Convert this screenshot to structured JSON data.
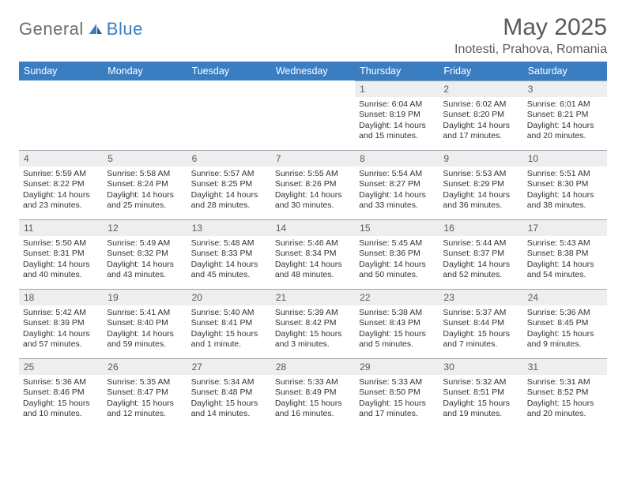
{
  "logo": {
    "general": "General",
    "blue": "Blue"
  },
  "title": "May 2025",
  "location": "Inotesti, Prahova, Romania",
  "colors": {
    "header_bg": "#3a7ec1",
    "header_text": "#ffffff",
    "daynum_bg": "#eceef0",
    "daynum_border": "#9fa4aa",
    "text": "#333333",
    "title_text": "#5a5a5a"
  },
  "weekdays": [
    "Sunday",
    "Monday",
    "Tuesday",
    "Wednesday",
    "Thursday",
    "Friday",
    "Saturday"
  ],
  "weeks": [
    [
      {
        "empty": true
      },
      {
        "empty": true
      },
      {
        "empty": true
      },
      {
        "empty": true
      },
      {
        "day": "1",
        "sunrise": "Sunrise: 6:04 AM",
        "sunset": "Sunset: 8:19 PM",
        "daylight": "Daylight: 14 hours and 15 minutes."
      },
      {
        "day": "2",
        "sunrise": "Sunrise: 6:02 AM",
        "sunset": "Sunset: 8:20 PM",
        "daylight": "Daylight: 14 hours and 17 minutes."
      },
      {
        "day": "3",
        "sunrise": "Sunrise: 6:01 AM",
        "sunset": "Sunset: 8:21 PM",
        "daylight": "Daylight: 14 hours and 20 minutes."
      }
    ],
    [
      {
        "day": "4",
        "sunrise": "Sunrise: 5:59 AM",
        "sunset": "Sunset: 8:22 PM",
        "daylight": "Daylight: 14 hours and 23 minutes."
      },
      {
        "day": "5",
        "sunrise": "Sunrise: 5:58 AM",
        "sunset": "Sunset: 8:24 PM",
        "daylight": "Daylight: 14 hours and 25 minutes."
      },
      {
        "day": "6",
        "sunrise": "Sunrise: 5:57 AM",
        "sunset": "Sunset: 8:25 PM",
        "daylight": "Daylight: 14 hours and 28 minutes."
      },
      {
        "day": "7",
        "sunrise": "Sunrise: 5:55 AM",
        "sunset": "Sunset: 8:26 PM",
        "daylight": "Daylight: 14 hours and 30 minutes."
      },
      {
        "day": "8",
        "sunrise": "Sunrise: 5:54 AM",
        "sunset": "Sunset: 8:27 PM",
        "daylight": "Daylight: 14 hours and 33 minutes."
      },
      {
        "day": "9",
        "sunrise": "Sunrise: 5:53 AM",
        "sunset": "Sunset: 8:29 PM",
        "daylight": "Daylight: 14 hours and 36 minutes."
      },
      {
        "day": "10",
        "sunrise": "Sunrise: 5:51 AM",
        "sunset": "Sunset: 8:30 PM",
        "daylight": "Daylight: 14 hours and 38 minutes."
      }
    ],
    [
      {
        "day": "11",
        "sunrise": "Sunrise: 5:50 AM",
        "sunset": "Sunset: 8:31 PM",
        "daylight": "Daylight: 14 hours and 40 minutes."
      },
      {
        "day": "12",
        "sunrise": "Sunrise: 5:49 AM",
        "sunset": "Sunset: 8:32 PM",
        "daylight": "Daylight: 14 hours and 43 minutes."
      },
      {
        "day": "13",
        "sunrise": "Sunrise: 5:48 AM",
        "sunset": "Sunset: 8:33 PM",
        "daylight": "Daylight: 14 hours and 45 minutes."
      },
      {
        "day": "14",
        "sunrise": "Sunrise: 5:46 AM",
        "sunset": "Sunset: 8:34 PM",
        "daylight": "Daylight: 14 hours and 48 minutes."
      },
      {
        "day": "15",
        "sunrise": "Sunrise: 5:45 AM",
        "sunset": "Sunset: 8:36 PM",
        "daylight": "Daylight: 14 hours and 50 minutes."
      },
      {
        "day": "16",
        "sunrise": "Sunrise: 5:44 AM",
        "sunset": "Sunset: 8:37 PM",
        "daylight": "Daylight: 14 hours and 52 minutes."
      },
      {
        "day": "17",
        "sunrise": "Sunrise: 5:43 AM",
        "sunset": "Sunset: 8:38 PM",
        "daylight": "Daylight: 14 hours and 54 minutes."
      }
    ],
    [
      {
        "day": "18",
        "sunrise": "Sunrise: 5:42 AM",
        "sunset": "Sunset: 8:39 PM",
        "daylight": "Daylight: 14 hours and 57 minutes."
      },
      {
        "day": "19",
        "sunrise": "Sunrise: 5:41 AM",
        "sunset": "Sunset: 8:40 PM",
        "daylight": "Daylight: 14 hours and 59 minutes."
      },
      {
        "day": "20",
        "sunrise": "Sunrise: 5:40 AM",
        "sunset": "Sunset: 8:41 PM",
        "daylight": "Daylight: 15 hours and 1 minute."
      },
      {
        "day": "21",
        "sunrise": "Sunrise: 5:39 AM",
        "sunset": "Sunset: 8:42 PM",
        "daylight": "Daylight: 15 hours and 3 minutes."
      },
      {
        "day": "22",
        "sunrise": "Sunrise: 5:38 AM",
        "sunset": "Sunset: 8:43 PM",
        "daylight": "Daylight: 15 hours and 5 minutes."
      },
      {
        "day": "23",
        "sunrise": "Sunrise: 5:37 AM",
        "sunset": "Sunset: 8:44 PM",
        "daylight": "Daylight: 15 hours and 7 minutes."
      },
      {
        "day": "24",
        "sunrise": "Sunrise: 5:36 AM",
        "sunset": "Sunset: 8:45 PM",
        "daylight": "Daylight: 15 hours and 9 minutes."
      }
    ],
    [
      {
        "day": "25",
        "sunrise": "Sunrise: 5:36 AM",
        "sunset": "Sunset: 8:46 PM",
        "daylight": "Daylight: 15 hours and 10 minutes."
      },
      {
        "day": "26",
        "sunrise": "Sunrise: 5:35 AM",
        "sunset": "Sunset: 8:47 PM",
        "daylight": "Daylight: 15 hours and 12 minutes."
      },
      {
        "day": "27",
        "sunrise": "Sunrise: 5:34 AM",
        "sunset": "Sunset: 8:48 PM",
        "daylight": "Daylight: 15 hours and 14 minutes."
      },
      {
        "day": "28",
        "sunrise": "Sunrise: 5:33 AM",
        "sunset": "Sunset: 8:49 PM",
        "daylight": "Daylight: 15 hours and 16 minutes."
      },
      {
        "day": "29",
        "sunrise": "Sunrise: 5:33 AM",
        "sunset": "Sunset: 8:50 PM",
        "daylight": "Daylight: 15 hours and 17 minutes."
      },
      {
        "day": "30",
        "sunrise": "Sunrise: 5:32 AM",
        "sunset": "Sunset: 8:51 PM",
        "daylight": "Daylight: 15 hours and 19 minutes."
      },
      {
        "day": "31",
        "sunrise": "Sunrise: 5:31 AM",
        "sunset": "Sunset: 8:52 PM",
        "daylight": "Daylight: 15 hours and 20 minutes."
      }
    ]
  ]
}
